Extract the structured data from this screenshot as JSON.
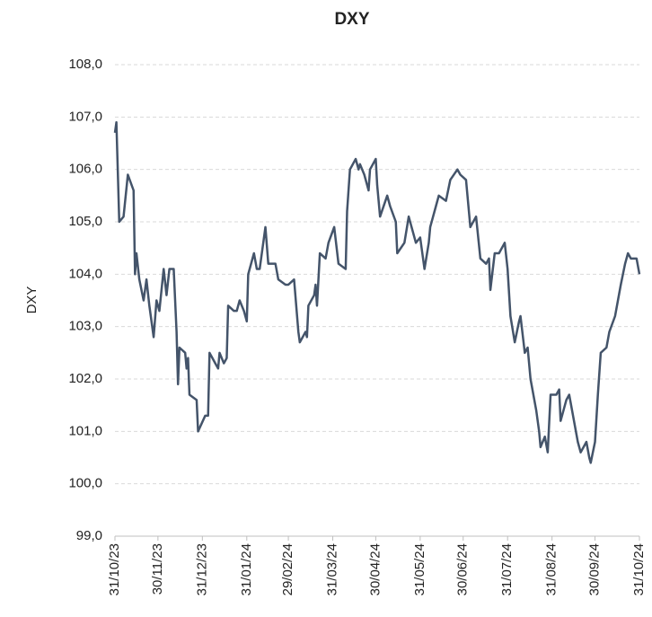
{
  "chart_data": {
    "type": "line",
    "title": "DXY",
    "y_label": "DXY",
    "grid": true,
    "x": [
      "2023-10-31",
      "2023-11-01",
      "2023-11-03",
      "2023-11-06",
      "2023-11-09",
      "2023-11-13",
      "2023-11-14",
      "2023-11-15",
      "2023-11-17",
      "2023-11-20",
      "2023-11-22",
      "2023-11-24",
      "2023-11-27",
      "2023-11-29",
      "2023-12-01",
      "2023-12-04",
      "2023-12-06",
      "2023-12-08",
      "2023-12-11",
      "2023-12-13",
      "2023-12-14",
      "2023-12-15",
      "2023-12-19",
      "2023-12-20",
      "2023-12-21",
      "2023-12-22",
      "2023-12-27",
      "2023-12-28",
      "2024-01-02",
      "2024-01-04",
      "2024-01-05",
      "2024-01-09",
      "2024-01-11",
      "2024-01-12",
      "2024-01-15",
      "2024-01-17",
      "2024-01-18",
      "2024-01-22",
      "2024-01-24",
      "2024-01-26",
      "2024-01-29",
      "2024-01-31",
      "2024-02-01",
      "2024-02-05",
      "2024-02-07",
      "2024-02-09",
      "2024-02-13",
      "2024-02-15",
      "2024-02-20",
      "2024-02-22",
      "2024-02-27",
      "2024-02-29",
      "2024-03-04",
      "2024-03-07",
      "2024-03-08",
      "2024-03-12",
      "2024-03-13",
      "2024-03-14",
      "2024-03-18",
      "2024-03-19",
      "2024-03-20",
      "2024-03-22",
      "2024-03-26",
      "2024-03-28",
      "2024-04-01",
      "2024-04-04",
      "2024-04-09",
      "2024-04-10",
      "2024-04-12",
      "2024-04-16",
      "2024-04-18",
      "2024-04-19",
      "2024-04-22",
      "2024-04-25",
      "2024-04-26",
      "2024-04-30",
      "2024-05-01",
      "2024-05-03",
      "2024-05-08",
      "2024-05-10",
      "2024-05-14",
      "2024-05-15",
      "2024-05-20",
      "2024-05-23",
      "2024-05-28",
      "2024-05-31",
      "2024-06-03",
      "2024-06-06",
      "2024-06-07",
      "2024-06-11",
      "2024-06-13",
      "2024-06-18",
      "2024-06-21",
      "2024-06-26",
      "2024-06-28",
      "2024-07-02",
      "2024-07-05",
      "2024-07-09",
      "2024-07-12",
      "2024-07-16",
      "2024-07-18",
      "2024-07-19",
      "2024-07-22",
      "2024-07-25",
      "2024-07-29",
      "2024-07-31",
      "2024-08-02",
      "2024-08-05",
      "2024-08-08",
      "2024-08-09",
      "2024-08-12",
      "2024-08-14",
      "2024-08-16",
      "2024-08-20",
      "2024-08-22",
      "2024-08-23",
      "2024-08-26",
      "2024-08-28",
      "2024-08-30",
      "2024-09-03",
      "2024-09-05",
      "2024-09-06",
      "2024-09-10",
      "2024-09-12",
      "2024-09-16",
      "2024-09-18",
      "2024-09-20",
      "2024-09-24",
      "2024-09-26",
      "2024-09-27",
      "2024-09-30",
      "2024-10-02",
      "2024-10-04",
      "2024-10-08",
      "2024-10-10",
      "2024-10-14",
      "2024-10-16",
      "2024-10-18",
      "2024-10-21",
      "2024-10-23",
      "2024-10-25",
      "2024-10-29",
      "2024-10-31"
    ],
    "series": [
      {
        "name": "DXY",
        "color": "#44546a",
        "values": [
          106.7,
          106.9,
          105.0,
          105.1,
          105.9,
          105.6,
          104.0,
          104.4,
          103.9,
          103.5,
          103.9,
          103.4,
          102.8,
          103.5,
          103.3,
          104.1,
          103.6,
          104.1,
          104.1,
          102.9,
          101.9,
          102.6,
          102.5,
          102.2,
          102.4,
          101.7,
          101.6,
          101.0,
          101.3,
          101.3,
          102.5,
          102.3,
          102.2,
          102.5,
          102.3,
          102.4,
          103.4,
          103.3,
          103.3,
          103.5,
          103.3,
          103.1,
          104.0,
          104.4,
          104.1,
          104.1,
          104.9,
          104.2,
          104.2,
          103.9,
          103.8,
          103.8,
          103.9,
          102.9,
          102.7,
          102.9,
          102.8,
          103.4,
          103.6,
          103.8,
          103.4,
          104.4,
          104.3,
          104.6,
          104.9,
          104.2,
          104.1,
          105.2,
          106.0,
          106.2,
          106.0,
          106.1,
          105.9,
          105.6,
          106.0,
          106.2,
          105.7,
          105.1,
          105.5,
          105.3,
          105.0,
          104.4,
          104.6,
          105.1,
          104.6,
          104.7,
          104.1,
          104.6,
          104.9,
          105.3,
          105.5,
          105.4,
          105.8,
          106.0,
          105.9,
          105.8,
          104.9,
          105.1,
          104.3,
          104.2,
          104.3,
          103.7,
          104.4,
          104.4,
          104.6,
          104.1,
          103.2,
          102.7,
          103.1,
          103.2,
          102.5,
          102.6,
          102.0,
          101.4,
          101.0,
          100.7,
          100.9,
          100.6,
          101.7,
          101.7,
          101.8,
          101.2,
          101.6,
          101.7,
          101.1,
          100.8,
          100.6,
          100.8,
          100.5,
          100.4,
          100.8,
          101.7,
          102.5,
          102.6,
          102.9,
          103.2,
          103.5,
          103.8,
          104.2,
          104.4,
          104.3,
          104.3,
          104.0
        ]
      }
    ],
    "xlim": [
      "2023-10-31",
      "2024-10-31"
    ],
    "xticks": [
      {
        "value": "2023-10-31",
        "label": "31/10/23"
      },
      {
        "value": "2023-11-30",
        "label": "30/11/23"
      },
      {
        "value": "2023-12-31",
        "label": "31/12/23"
      },
      {
        "value": "2024-01-31",
        "label": "31/01/24"
      },
      {
        "value": "2024-02-29",
        "label": "29/02/24"
      },
      {
        "value": "2024-03-31",
        "label": "31/03/24"
      },
      {
        "value": "2024-04-30",
        "label": "30/04/24"
      },
      {
        "value": "2024-05-31",
        "label": "31/05/24"
      },
      {
        "value": "2024-06-30",
        "label": "30/06/24"
      },
      {
        "value": "2024-07-31",
        "label": "31/07/24"
      },
      {
        "value": "2024-08-31",
        "label": "31/08/24"
      },
      {
        "value": "2024-09-30",
        "label": "30/09/24"
      },
      {
        "value": "2024-10-31",
        "label": "31/10/24"
      }
    ],
    "ylim": [
      99,
      108
    ],
    "yticks": [
      {
        "value": 99,
        "label": "99,0"
      },
      {
        "value": 100,
        "label": "100,0"
      },
      {
        "value": 101,
        "label": "101,0"
      },
      {
        "value": 102,
        "label": "102,0"
      },
      {
        "value": 103,
        "label": "103,0"
      },
      {
        "value": 104,
        "label": "104,0"
      },
      {
        "value": 105,
        "label": "105,0"
      },
      {
        "value": 106,
        "label": "106,0"
      },
      {
        "value": 107,
        "label": "107,0"
      },
      {
        "value": 108,
        "label": "108,0"
      }
    ]
  }
}
